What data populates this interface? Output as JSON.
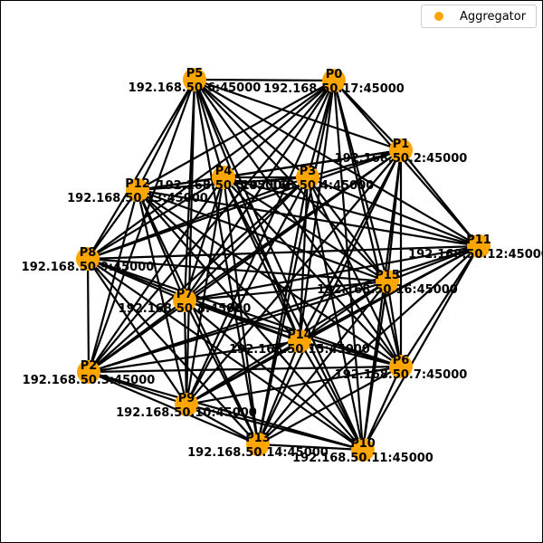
{
  "legend": {
    "label": "Aggregator",
    "color": "#ffa500"
  },
  "graph": {
    "node_color": "#ffa500",
    "edge_color": "#000000",
    "nodes": [
      {
        "id": "P0",
        "ip": "192.168.50.17:45000"
      },
      {
        "id": "P1",
        "ip": "192.168.50.2:45000"
      },
      {
        "id": "P2",
        "ip": "192.168.50.3:45000"
      },
      {
        "id": "P3",
        "ip": "192.168.50.4:45000"
      },
      {
        "id": "P4",
        "ip": "192.168.50.5:45000"
      },
      {
        "id": "P5",
        "ip": "192.168.50.6:45000"
      },
      {
        "id": "P6",
        "ip": "192.168.50.7:45000"
      },
      {
        "id": "P7",
        "ip": "192.168.50.8:45000"
      },
      {
        "id": "P8",
        "ip": "192.168.50.9:45000"
      },
      {
        "id": "P9",
        "ip": "192.168.50.10:45000"
      },
      {
        "id": "P10",
        "ip": "192.168.50.11:45000"
      },
      {
        "id": "P11",
        "ip": "192.168.50.12:45000"
      },
      {
        "id": "P12",
        "ip": "192.168.50.13:45000"
      },
      {
        "id": "P13",
        "ip": "192.168.50.14:45000"
      },
      {
        "id": "P14",
        "ip": "192.168.50.15:45000"
      },
      {
        "id": "P15",
        "ip": "192.168.50.16:45000"
      }
    ]
  }
}
